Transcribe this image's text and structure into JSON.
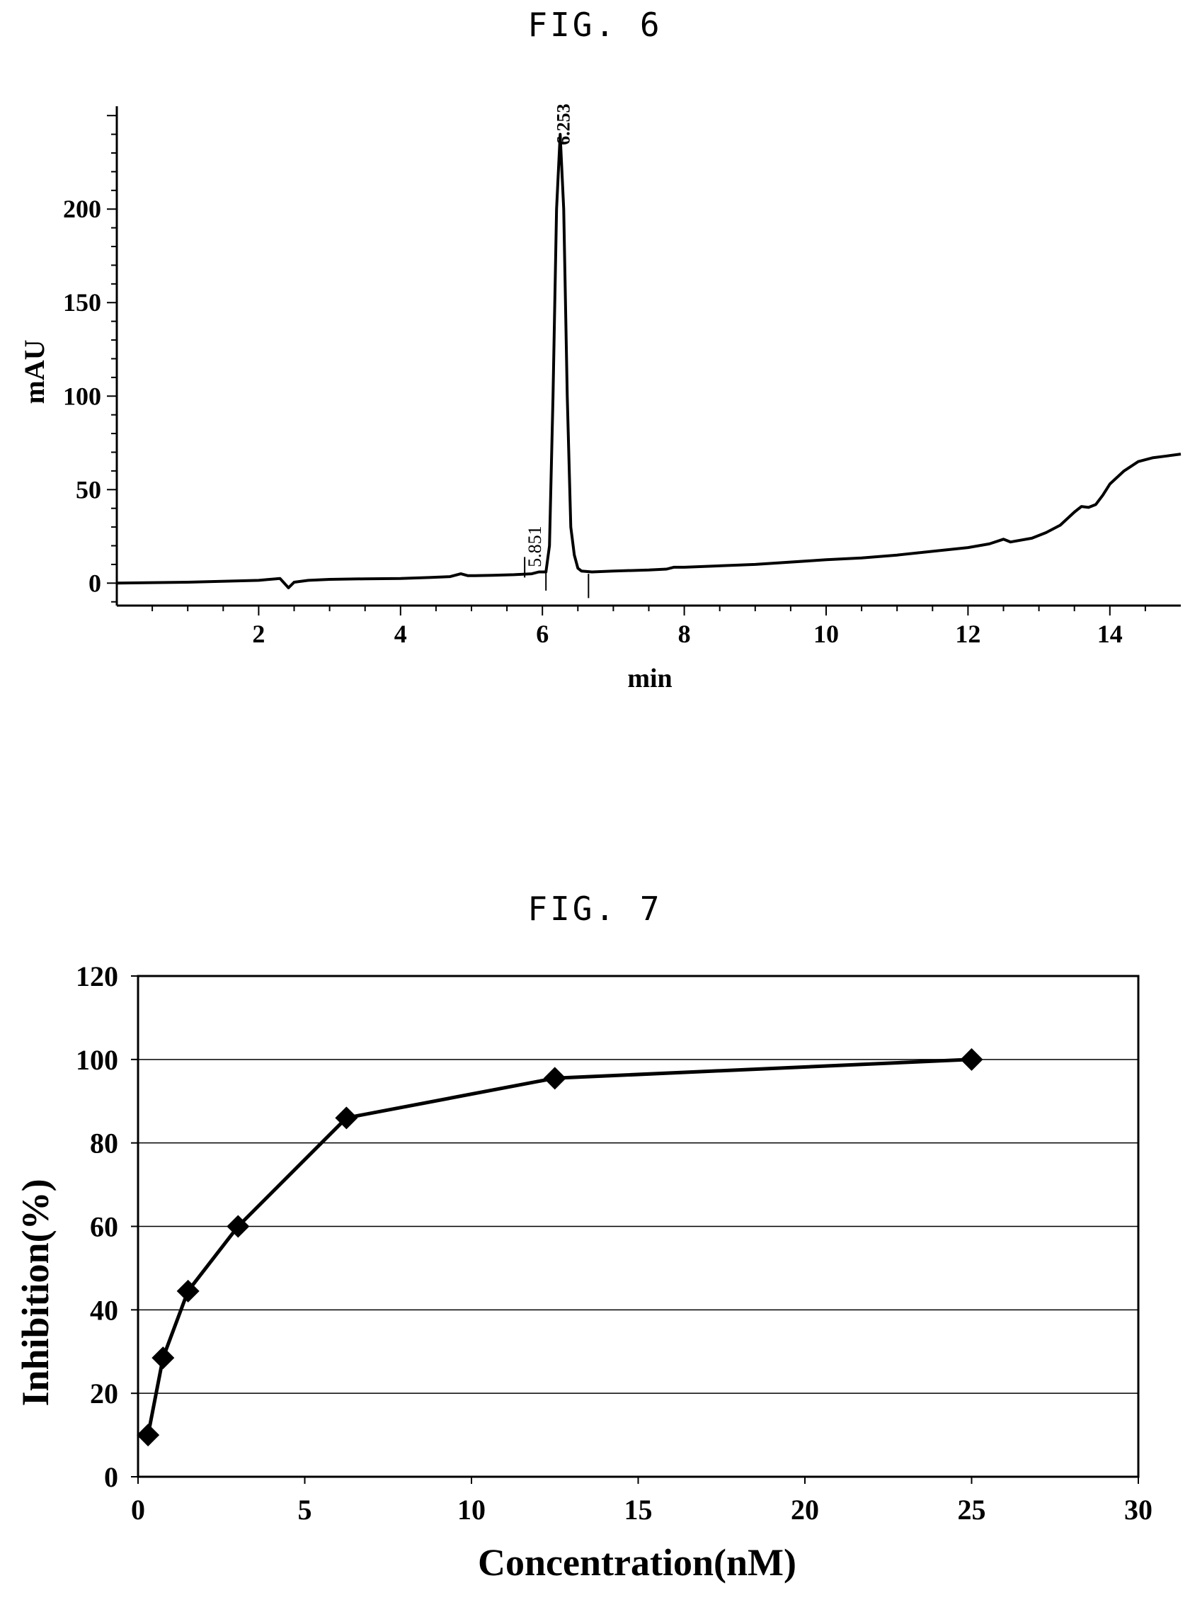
{
  "figures": [
    {
      "title": "FIG. 6"
    },
    {
      "title": "FIG. 7"
    }
  ],
  "chart_data": [
    {
      "type": "line",
      "title": "",
      "xlabel": "min",
      "ylabel": "mAU",
      "xlim": [
        0,
        15
      ],
      "ylim": [
        -12,
        255
      ],
      "xticks": [
        2,
        4,
        6,
        8,
        10,
        12,
        14
      ],
      "yticks": [
        0,
        50,
        100,
        150,
        200
      ],
      "grid": false,
      "series": [
        {
          "x": [
            0.0,
            1.0,
            2.0,
            2.3,
            2.42,
            2.5,
            2.7,
            3.0,
            3.5,
            4.0,
            4.4,
            4.7,
            4.85,
            4.95,
            5.05,
            5.3,
            5.6,
            5.85,
            5.95,
            6.05,
            6.1,
            6.15,
            6.2,
            6.25,
            6.3,
            6.35,
            6.4,
            6.45,
            6.5,
            6.55,
            6.7,
            7.0,
            7.5,
            7.75,
            7.85,
            8.0,
            9.0,
            10.0,
            10.5,
            11.0,
            11.5,
            12.0,
            12.3,
            12.5,
            12.6,
            12.9,
            13.1,
            13.3,
            13.5,
            13.6,
            13.7,
            13.8,
            13.9,
            14.0,
            14.2,
            14.4,
            14.6,
            14.8,
            15.0
          ],
          "y": [
            0,
            0.5,
            1.5,
            2.5,
            -2.5,
            0.5,
            1.5,
            2,
            2.3,
            2.5,
            3,
            3.5,
            5,
            4,
            4,
            4.2,
            4.5,
            5,
            6,
            6,
            20,
            100,
            200,
            240,
            200,
            100,
            30,
            15,
            8,
            6.5,
            6,
            6.5,
            7,
            7.5,
            8.5,
            8.5,
            10,
            12.5,
            13.5,
            15,
            17,
            19,
            21,
            23.5,
            22,
            24,
            27,
            31,
            38,
            41,
            40.5,
            42,
            47,
            53,
            60,
            65,
            67,
            68,
            69
          ]
        }
      ],
      "annotations": [
        "6.253",
        "5.851"
      ]
    },
    {
      "type": "line",
      "title": "",
      "xlabel": "Concentration(nM)",
      "ylabel": "Inhibition(%)",
      "xlim": [
        0,
        30
      ],
      "ylim": [
        0,
        120
      ],
      "xticks": [
        0,
        5,
        10,
        15,
        20,
        25,
        30
      ],
      "yticks": [
        0,
        20,
        40,
        60,
        80,
        100,
        120
      ],
      "grid": true,
      "series": [
        {
          "x": [
            0.3,
            0.75,
            1.5,
            3.0,
            6.25,
            12.5,
            25.0
          ],
          "y": [
            10,
            28.5,
            44.5,
            60,
            86,
            95.5,
            100
          ]
        }
      ]
    }
  ]
}
